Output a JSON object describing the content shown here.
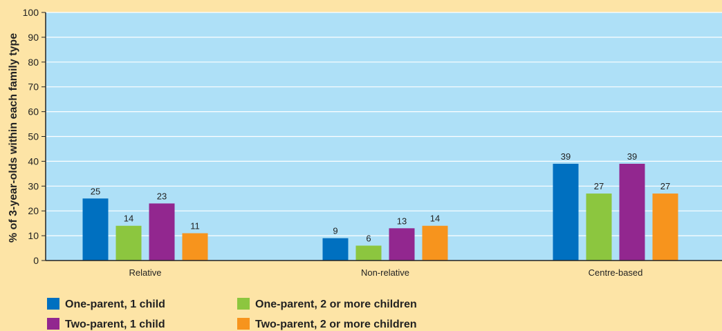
{
  "chart_data": {
    "type": "bar",
    "ylabel": "% of 3-year-olds within each family type",
    "ylim": [
      0,
      100
    ],
    "yticks": [
      0,
      10,
      20,
      30,
      40,
      50,
      60,
      70,
      80,
      90,
      100
    ],
    "categories": [
      "Relative",
      "Non-relative",
      "Centre-based"
    ],
    "grid": true,
    "legend_position": "bottom-left",
    "series": [
      {
        "name": "One-parent, 1 child",
        "color": "#0070c0",
        "values": [
          25,
          9,
          39
        ]
      },
      {
        "name": "One-parent, 2 or more children",
        "color": "#8cc63f",
        "values": [
          14,
          6,
          27
        ]
      },
      {
        "name": "Two-parent, 1 child",
        "color": "#92278f",
        "values": [
          23,
          13,
          39
        ]
      },
      {
        "name": "Two-parent, 2 or more children",
        "color": "#f7941d",
        "values": [
          11,
          14,
          27
        ]
      }
    ]
  },
  "colors": {
    "page_background": "#fde4a6",
    "plot_background": "#aee0f7",
    "gridline": "#ffffff",
    "axis": "#222222"
  }
}
